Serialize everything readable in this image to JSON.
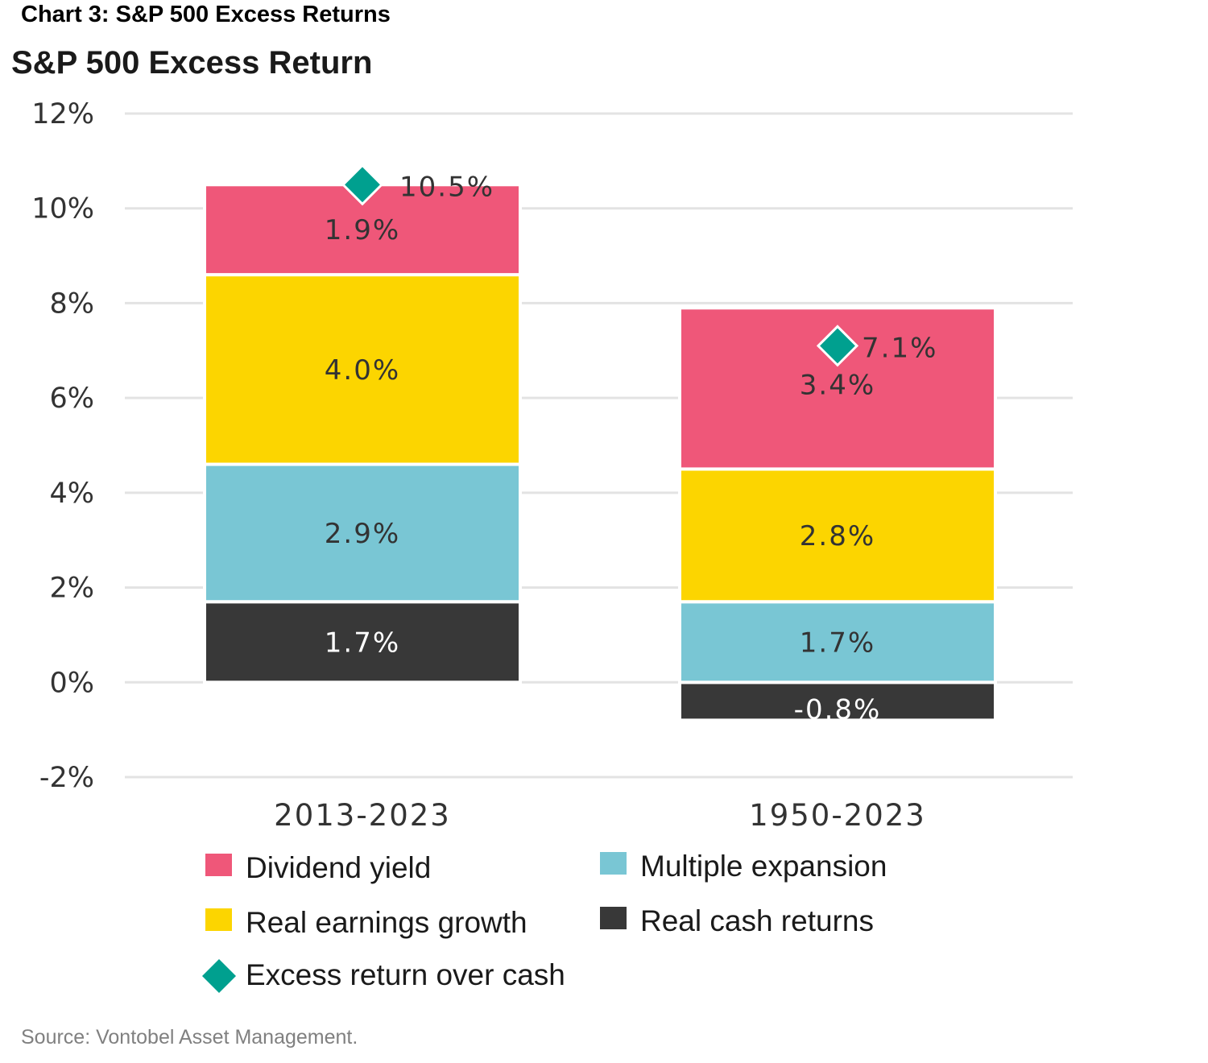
{
  "header": {
    "heading": "Chart 3: S&P 500 Excess Returns",
    "source": "Source: Vontobel Asset Management."
  },
  "colors": {
    "dividend": "#ef5779",
    "earnings": "#fcd500",
    "multiple": "#79c6d4",
    "cash": "#383838",
    "marker": "#00a08f",
    "grid": "#e3e3e3"
  },
  "chart_data": {
    "type": "bar",
    "stacked": true,
    "title": "S&P 500 Excess Return",
    "xlabel": "",
    "ylabel": "",
    "ylim": [
      -2,
      12
    ],
    "yticks": [
      {
        "value": 12,
        "label": "12%"
      },
      {
        "value": 10,
        "label": "10%"
      },
      {
        "value": 8,
        "label": "8%"
      },
      {
        "value": 6,
        "label": "6%"
      },
      {
        "value": 4,
        "label": "4%"
      },
      {
        "value": 2,
        "label": "2%"
      },
      {
        "value": 0,
        "label": "0%"
      },
      {
        "value": -2,
        "label": "-2%"
      }
    ],
    "grid": true,
    "legend_position": "bottom",
    "categories": [
      "2013-2023",
      "1950-2023"
    ],
    "series": [
      {
        "name": "Real cash returns",
        "key": "cash",
        "values": [
          1.7,
          -0.8
        ],
        "labels": [
          "1.7%",
          "-0.8%"
        ],
        "label_color": "#ffffff"
      },
      {
        "name": "Multiple expansion",
        "key": "multiple",
        "values": [
          2.9,
          1.7
        ],
        "labels": [
          "2.9%",
          "1.7%"
        ],
        "label_color": "#333333"
      },
      {
        "name": "Real earnings growth",
        "key": "earnings",
        "values": [
          4.0,
          2.8
        ],
        "labels": [
          "4.0%",
          "2.8%"
        ],
        "label_color": "#333333"
      },
      {
        "name": "Dividend yield",
        "key": "dividend",
        "values": [
          1.9,
          3.4
        ],
        "labels": [
          "1.9%",
          "3.4%"
        ],
        "label_color": "#333333"
      }
    ],
    "markers": {
      "name": "Excess return over cash",
      "values": [
        10.5,
        7.1
      ],
      "labels": [
        "10.5%",
        "7.1%"
      ]
    },
    "legend": [
      {
        "label": "Dividend yield",
        "key": "dividend",
        "shape": "square"
      },
      {
        "label": "Multiple expansion",
        "key": "multiple",
        "shape": "square"
      },
      {
        "label": "Real earnings growth",
        "key": "earnings",
        "shape": "square"
      },
      {
        "label": "Real cash returns",
        "key": "cash",
        "shape": "square"
      },
      {
        "label": "Excess return over cash",
        "key": "marker",
        "shape": "diamond"
      }
    ]
  }
}
